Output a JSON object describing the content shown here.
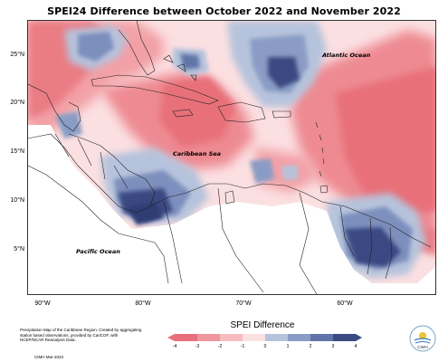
{
  "title": "SPEI24 Difference between October 2022 and November 2022",
  "map": {
    "lat_labels": [
      "25°N",
      "20°N",
      "15°N",
      "10°N",
      "5°N"
    ],
    "lon_labels": [
      "90°W",
      "80°W",
      "70°W",
      "60°W"
    ],
    "ocean_labels": {
      "atlantic": "Atlantic Ocean",
      "caribbean": "Caribbean Sea",
      "pacific": "Pacific Ocean"
    }
  },
  "legend": {
    "title": "SPEI Difference",
    "ticks": [
      "-4",
      "-3",
      "-2",
      "-1",
      "0",
      "1",
      "2",
      "3",
      "4"
    ],
    "colors": [
      "#e8707a",
      "#f0969d",
      "#f6bcc0",
      "#fbe0e2",
      "#dfe6f0",
      "#b6c3dc",
      "#8a9cc5",
      "#5f74a8",
      "#3a4a82"
    ]
  },
  "credits": {
    "text": "Precipitation Map of the Caribbean Region. Created by aggregating station based observations, provided by CariCOF, with NCEP/NCAR Reanalysis Data.",
    "date": "CIMH Mar-2023"
  },
  "logo": {
    "label": "CIMH",
    "icon": "cimh-logo-icon"
  }
}
